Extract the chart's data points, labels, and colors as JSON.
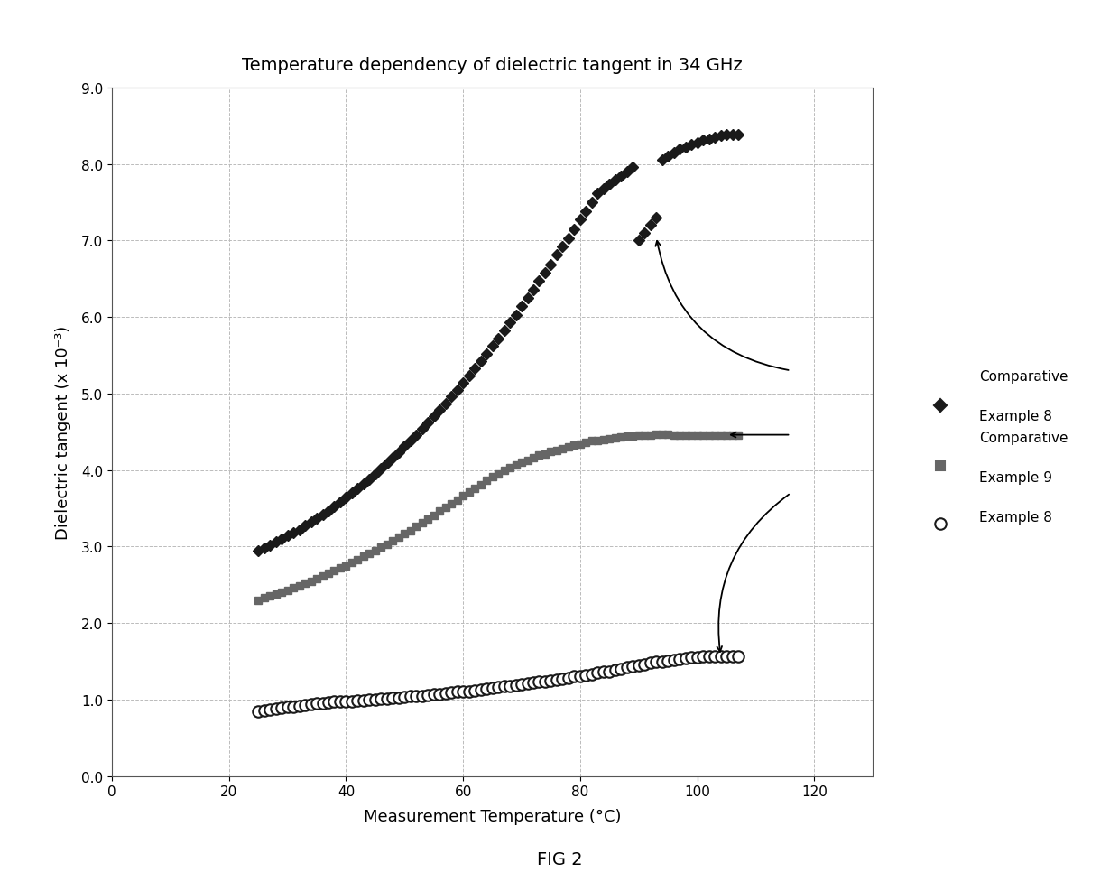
{
  "title": "Temperature dependency of dielectric tangent in 34 GHz",
  "xlabel": "Measurement Temperature (°C)",
  "ylabel": "Dielectric tangent (x 10⁻³)",
  "figcaption": "FIG 2",
  "xlim": [
    0,
    130
  ],
  "ylim": [
    0.0,
    9.0
  ],
  "xticks": [
    0,
    20,
    40,
    60,
    80,
    100,
    120
  ],
  "yticks": [
    0.0,
    1.0,
    2.0,
    3.0,
    4.0,
    5.0,
    6.0,
    7.0,
    8.0,
    9.0
  ],
  "series": {
    "comp_ex8": {
      "label": "Comparative\nExample 8",
      "color": "#1a1a1a",
      "marker": "D",
      "markersize": 6,
      "x": [
        25,
        26,
        27,
        28,
        29,
        30,
        31,
        32,
        33,
        34,
        35,
        36,
        37,
        38,
        39,
        40,
        41,
        42,
        43,
        44,
        45,
        46,
        47,
        48,
        49,
        50,
        51,
        52,
        53,
        54,
        55,
        56,
        57,
        58,
        59,
        60,
        61,
        62,
        63,
        64,
        65,
        66,
        67,
        68,
        69,
        70,
        71,
        72,
        73,
        74,
        75,
        76,
        77,
        78,
        79,
        80,
        81,
        82,
        83,
        84,
        85,
        86,
        87,
        88,
        89,
        90,
        91,
        92,
        93,
        94,
        95,
        96,
        97,
        98,
        99,
        100,
        101,
        102,
        103,
        104,
        105,
        106,
        107
      ],
      "y": [
        2.95,
        2.98,
        3.02,
        3.06,
        3.1,
        3.14,
        3.18,
        3.22,
        3.27,
        3.32,
        3.37,
        3.42,
        3.47,
        3.52,
        3.58,
        3.64,
        3.7,
        3.76,
        3.82,
        3.88,
        3.95,
        4.02,
        4.09,
        4.16,
        4.23,
        4.31,
        4.38,
        4.46,
        4.54,
        4.62,
        4.7,
        4.79,
        4.87,
        4.96,
        5.05,
        5.14,
        5.23,
        5.33,
        5.42,
        5.52,
        5.62,
        5.72,
        5.82,
        5.93,
        6.03,
        6.14,
        6.25,
        6.36,
        6.47,
        6.58,
        6.69,
        6.81,
        6.92,
        7.03,
        7.15,
        7.27,
        7.38,
        7.5,
        7.62,
        7.68,
        7.74,
        7.79,
        7.84,
        7.9,
        7.96,
        7.0,
        7.1,
        7.2,
        7.3,
        8.05,
        8.1,
        8.15,
        8.19,
        8.22,
        8.25,
        8.28,
        8.31,
        8.33,
        8.35,
        8.37,
        8.38,
        8.39,
        8.38
      ]
    },
    "comp_ex9": {
      "label": "Comparative\nExample 9",
      "color": "#666666",
      "marker": "s",
      "markersize": 6,
      "x": [
        25,
        26,
        27,
        28,
        29,
        30,
        31,
        32,
        33,
        34,
        35,
        36,
        37,
        38,
        39,
        40,
        41,
        42,
        43,
        44,
        45,
        46,
        47,
        48,
        49,
        50,
        51,
        52,
        53,
        54,
        55,
        56,
        57,
        58,
        59,
        60,
        61,
        62,
        63,
        64,
        65,
        66,
        67,
        68,
        69,
        70,
        71,
        72,
        73,
        74,
        75,
        76,
        77,
        78,
        79,
        80,
        81,
        82,
        83,
        84,
        85,
        86,
        87,
        88,
        89,
        90,
        91,
        92,
        93,
        94,
        95,
        96,
        97,
        98,
        99,
        100,
        101,
        102,
        103,
        104,
        105,
        106,
        107
      ],
      "y": [
        2.3,
        2.33,
        2.35,
        2.38,
        2.4,
        2.43,
        2.46,
        2.49,
        2.52,
        2.55,
        2.58,
        2.61,
        2.65,
        2.68,
        2.72,
        2.75,
        2.79,
        2.83,
        2.87,
        2.91,
        2.95,
        2.99,
        3.03,
        3.08,
        3.12,
        3.17,
        3.21,
        3.26,
        3.31,
        3.36,
        3.41,
        3.46,
        3.51,
        3.56,
        3.61,
        3.66,
        3.71,
        3.76,
        3.81,
        3.86,
        3.91,
        3.95,
        3.99,
        4.03,
        4.07,
        4.1,
        4.13,
        4.16,
        4.19,
        4.21,
        4.24,
        4.26,
        4.28,
        4.3,
        4.32,
        4.34,
        4.36,
        4.38,
        4.39,
        4.4,
        4.41,
        4.42,
        4.43,
        4.44,
        4.44,
        4.45,
        4.46,
        4.46,
        4.47,
        4.47,
        4.47,
        4.46,
        4.46,
        4.46,
        4.46,
        4.46,
        4.46,
        4.46,
        4.46,
        4.46,
        4.46,
        4.46,
        4.46
      ]
    },
    "ex8": {
      "label": "Example 8",
      "color": "#1a1a1a",
      "marker": "o",
      "markersize": 9,
      "markerfacecolor": "white",
      "markeredgecolor": "#1a1a1a",
      "x": [
        25,
        26,
        27,
        28,
        29,
        30,
        31,
        32,
        33,
        34,
        35,
        36,
        37,
        38,
        39,
        40,
        41,
        42,
        43,
        44,
        45,
        46,
        47,
        48,
        49,
        50,
        51,
        52,
        53,
        54,
        55,
        56,
        57,
        58,
        59,
        60,
        61,
        62,
        63,
        64,
        65,
        66,
        67,
        68,
        69,
        70,
        71,
        72,
        73,
        74,
        75,
        76,
        77,
        78,
        79,
        80,
        81,
        82,
        83,
        84,
        85,
        86,
        87,
        88,
        89,
        90,
        91,
        92,
        93,
        94,
        95,
        96,
        97,
        98,
        99,
        100,
        101,
        102,
        103,
        104,
        105,
        106,
        107
      ],
      "y": [
        0.85,
        0.86,
        0.87,
        0.88,
        0.89,
        0.9,
        0.91,
        0.92,
        0.93,
        0.94,
        0.95,
        0.95,
        0.96,
        0.97,
        0.97,
        0.98,
        0.98,
        0.99,
        0.99,
        1.0,
        1.0,
        1.01,
        1.01,
        1.02,
        1.02,
        1.03,
        1.04,
        1.04,
        1.05,
        1.06,
        1.07,
        1.07,
        1.08,
        1.09,
        1.1,
        1.11,
        1.11,
        1.12,
        1.13,
        1.14,
        1.15,
        1.16,
        1.17,
        1.18,
        1.19,
        1.2,
        1.21,
        1.22,
        1.23,
        1.24,
        1.25,
        1.26,
        1.27,
        1.28,
        1.3,
        1.31,
        1.32,
        1.33,
        1.35,
        1.36,
        1.37,
        1.39,
        1.4,
        1.42,
        1.43,
        1.45,
        1.46,
        1.48,
        1.49,
        1.5,
        1.51,
        1.52,
        1.53,
        1.54,
        1.55,
        1.55,
        1.56,
        1.56,
        1.57,
        1.57,
        1.57,
        1.57,
        1.57
      ]
    }
  },
  "background_color": "#ffffff",
  "grid_color": "#bbbbbb",
  "grid_linestyle": "--"
}
